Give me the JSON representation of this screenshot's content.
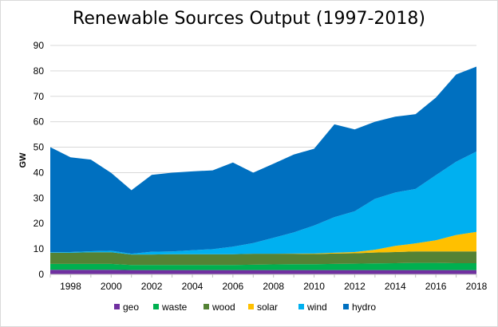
{
  "chart_data": {
    "type": "area",
    "stacked": true,
    "title": "Renewable Sources Output (1997-2018)",
    "xlabel": "",
    "ylabel": "GW",
    "x": [
      1997,
      1998,
      1999,
      2000,
      2001,
      2002,
      2003,
      2004,
      2005,
      2006,
      2007,
      2008,
      2009,
      2010,
      2011,
      2012,
      2013,
      2014,
      2015,
      2016,
      2017,
      2018
    ],
    "xticks": [
      "1998",
      "2000",
      "2002",
      "2004",
      "2006",
      "2008",
      "2010",
      "2012",
      "2014",
      "2016",
      "2018"
    ],
    "xtick_values": [
      1998,
      2000,
      2002,
      2004,
      2006,
      2008,
      2010,
      2012,
      2014,
      2016,
      2018
    ],
    "ylim": [
      0,
      90
    ],
    "yticks": [
      "0",
      "10",
      "20",
      "30",
      "40",
      "50",
      "60",
      "70",
      "80",
      "90"
    ],
    "ytick_values": [
      0,
      10,
      20,
      30,
      40,
      50,
      60,
      70,
      80,
      90
    ],
    "grid": true,
    "legend_position": "bottom",
    "series": [
      {
        "name": "geo",
        "color": "#7030A0",
        "values": [
          1.8,
          1.8,
          1.8,
          1.8,
          1.7,
          1.7,
          1.7,
          1.7,
          1.7,
          1.7,
          1.7,
          1.7,
          1.7,
          1.7,
          1.7,
          1.7,
          1.7,
          1.7,
          1.7,
          1.7,
          1.7,
          1.7
        ]
      },
      {
        "name": "waste",
        "color": "#00B050",
        "values": [
          2.3,
          2.3,
          2.3,
          2.3,
          2.0,
          2.0,
          2.0,
          2.0,
          2.0,
          2.0,
          2.1,
          2.2,
          2.3,
          2.3,
          2.4,
          2.5,
          2.6,
          2.7,
          2.8,
          2.8,
          2.7,
          2.7
        ]
      },
      {
        "name": "wood",
        "color": "#548235",
        "values": [
          4.4,
          4.4,
          4.6,
          4.6,
          4.1,
          4.1,
          4.2,
          4.2,
          4.2,
          4.2,
          4.3,
          4.2,
          4.1,
          4.0,
          4.1,
          4.1,
          4.3,
          4.4,
          4.5,
          4.5,
          4.6,
          4.6
        ]
      },
      {
        "name": "solar",
        "color": "#FFC000",
        "values": [
          0.0,
          0.0,
          0.0,
          0.0,
          0.0,
          0.0,
          0.0,
          0.0,
          0.0,
          0.0,
          0.0,
          0.0,
          0.1,
          0.2,
          0.3,
          0.5,
          1.1,
          2.4,
          3.2,
          4.4,
          6.5,
          7.7
        ]
      },
      {
        "name": "wind",
        "color": "#00B0F0",
        "values": [
          0.2,
          0.3,
          0.4,
          0.6,
          0.3,
          1.1,
          1.1,
          1.6,
          2.0,
          3.0,
          4.2,
          6.3,
          8.3,
          11.0,
          14.0,
          16.0,
          20.0,
          21.0,
          21.4,
          25.6,
          28.8,
          31.6
        ]
      },
      {
        "name": "hydro",
        "color": "#0070C0",
        "values": [
          41.3,
          37.2,
          36.0,
          30.6,
          25.0,
          30.2,
          31.0,
          31.0,
          31.0,
          33.1,
          27.7,
          29.1,
          30.6,
          30.2,
          36.5,
          32.2,
          30.3,
          29.8,
          29.4,
          30.5,
          34.3,
          33.4
        ]
      }
    ]
  }
}
